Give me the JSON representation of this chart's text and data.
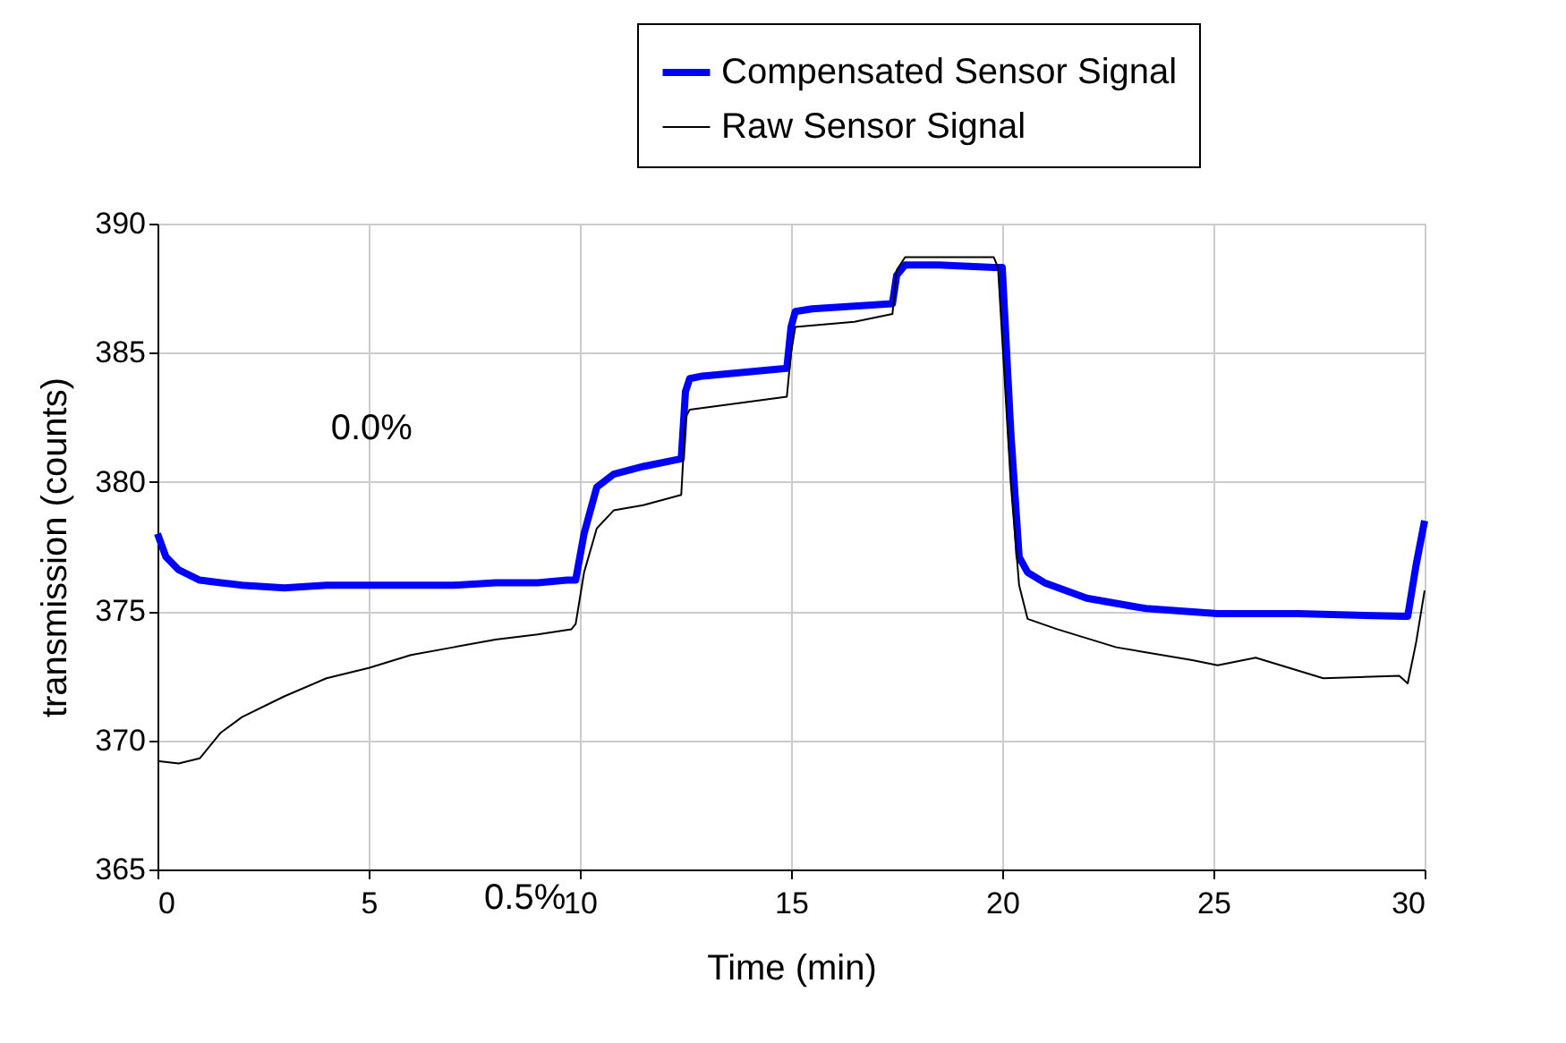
{
  "chart_data": {
    "type": "line",
    "xlabel": "Time (min)",
    "ylabel": "transmission (counts)",
    "xlim": [
      0,
      30
    ],
    "ylim": [
      365,
      390
    ],
    "xticks": [
      0,
      5,
      10,
      15,
      20,
      25,
      30
    ],
    "yticks": [
      365,
      370,
      375,
      380,
      385,
      390
    ],
    "grid": true,
    "legend": "top right",
    "marker": "none",
    "line_style": "solid",
    "annotations": [
      "0.0%",
      "0.5%"
    ],
    "series": [
      {
        "name": "Compensated Sensor Signal",
        "color": "#0000ff",
        "x": [
          0,
          0.2,
          0.5,
          1,
          1.5,
          2,
          3,
          4,
          5,
          6,
          7,
          8,
          9,
          9.7,
          9.9,
          10.1,
          10.4,
          10.8,
          11.5,
          12.4,
          12.5,
          12.6,
          12.9,
          14.9,
          15.0,
          15.1,
          15.5,
          17.4,
          17.5,
          17.7,
          18.5,
          19.8,
          20.0,
          20.2,
          20.4,
          20.6,
          21,
          22,
          23.4,
          25.1,
          27,
          29.5,
          29.6,
          29.8,
          30
        ],
        "values": [
          378.0,
          377.1,
          376.6,
          376.2,
          376.1,
          376.0,
          375.9,
          376.0,
          376.0,
          376.0,
          376.0,
          376.1,
          376.1,
          376.2,
          376.2,
          378.0,
          379.8,
          380.3,
          380.6,
          380.9,
          383.5,
          384.0,
          384.1,
          384.4,
          386.0,
          386.6,
          386.7,
          386.9,
          388.0,
          388.4,
          388.4,
          388.3,
          388.3,
          382.0,
          377.1,
          376.5,
          376.1,
          375.5,
          375.1,
          374.9,
          374.9,
          374.8,
          374.8,
          376.8,
          378.5
        ]
      },
      {
        "name": "Raw Sensor Signal",
        "color": "#000000",
        "x": [
          0,
          0.5,
          1,
          1.5,
          2,
          3,
          4,
          5,
          6,
          7,
          8,
          9,
          9.8,
          9.9,
          10.1,
          10.4,
          10.8,
          11.5,
          12.4,
          12.5,
          12.6,
          14.9,
          15.0,
          15.1,
          16.5,
          17.4,
          17.5,
          17.7,
          19.8,
          19.9,
          20.2,
          20.4,
          20.6,
          21.3,
          22.7,
          24.5,
          25.1,
          26.0,
          27.6,
          29.4,
          29.6,
          29.8,
          30
        ],
        "values": [
          369.2,
          369.1,
          369.3,
          370.3,
          370.9,
          371.7,
          372.4,
          372.8,
          373.3,
          373.6,
          373.9,
          374.1,
          374.3,
          374.5,
          376.5,
          378.2,
          378.9,
          379.1,
          379.5,
          382.5,
          382.8,
          383.3,
          385.0,
          386.0,
          386.2,
          386.5,
          388.2,
          388.7,
          388.7,
          388.3,
          380.0,
          376.0,
          374.7,
          374.3,
          373.6,
          373.1,
          372.9,
          373.2,
          372.4,
          372.5,
          372.2,
          373.8,
          375.8
        ]
      }
    ]
  }
}
